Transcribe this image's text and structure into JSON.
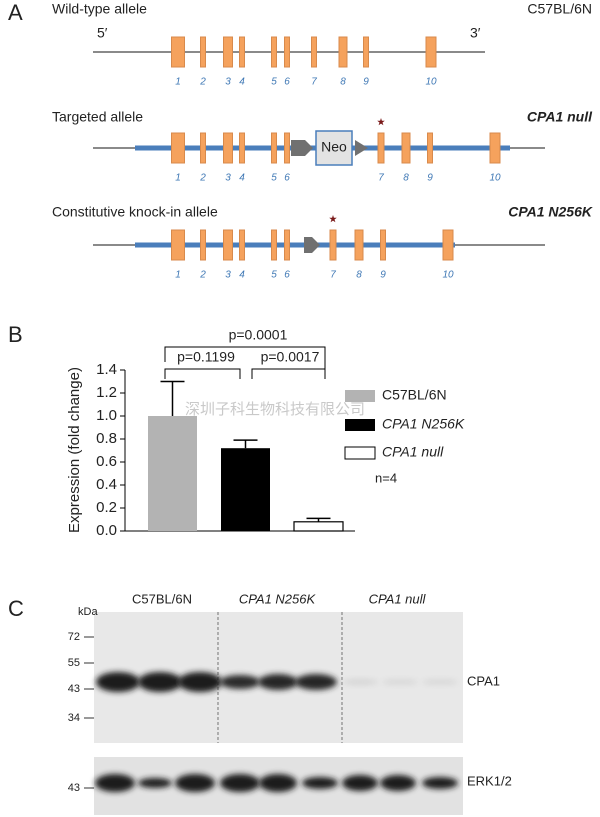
{
  "panel_a": {
    "label": "A",
    "alleles": [
      {
        "name": "Wild-type allele",
        "strain": "C57BL/6N",
        "left_end": "5′",
        "right_end": "3′",
        "exons": [
          "1",
          "2",
          "3",
          "4",
          "5",
          "6",
          "7",
          "8",
          "9",
          "10"
        ]
      },
      {
        "name": "Targeted allele",
        "strain": "CPA1 null",
        "insert": "Neo",
        "exons": [
          "1",
          "2",
          "3",
          "4",
          "5",
          "6",
          "7",
          "8",
          "9",
          "10"
        ]
      },
      {
        "name": "Constitutive knock-in allele",
        "strain": "CPA1 N256K",
        "exons": [
          "1",
          "2",
          "3",
          "4",
          "5",
          "6",
          "7",
          "8",
          "9",
          "10"
        ]
      }
    ]
  },
  "chart_data": {
    "type": "bar",
    "panel_label": "B",
    "y_label": "Expression (fold change)",
    "categories": [
      "C57BL/6N",
      "CPA1 N256K",
      "CPA1 null"
    ],
    "values": [
      1.0,
      0.72,
      0.08
    ],
    "errors": [
      0.3,
      0.07,
      0.03
    ],
    "colors": [
      "#b3b3b3",
      "#000000",
      "#ffffff"
    ],
    "ylim": [
      0,
      1.4
    ],
    "yticks": [
      {
        "value": 0,
        "label": "0.0"
      },
      0.2,
      0.4,
      0.6,
      0.8,
      {
        "value": 1,
        "label": "1.0"
      },
      1.2,
      1.4
    ],
    "comparisons": [
      "p=0.0001",
      "p=0.1199",
      "p=0.0017"
    ],
    "annotation": "n=4",
    "legend": "right"
  },
  "panel_c": {
    "label": "C",
    "lanes": [
      "C57BL/6N",
      "CPA1 N256K",
      "CPA1 null"
    ],
    "unit": "kDa",
    "markers": [
      "72",
      "55",
      "43",
      "34"
    ],
    "targets": [
      "CPA1",
      "ERK1/2"
    ],
    "erk_marker": "43"
  },
  "watermark": "深圳子科生物科技有限公司"
}
